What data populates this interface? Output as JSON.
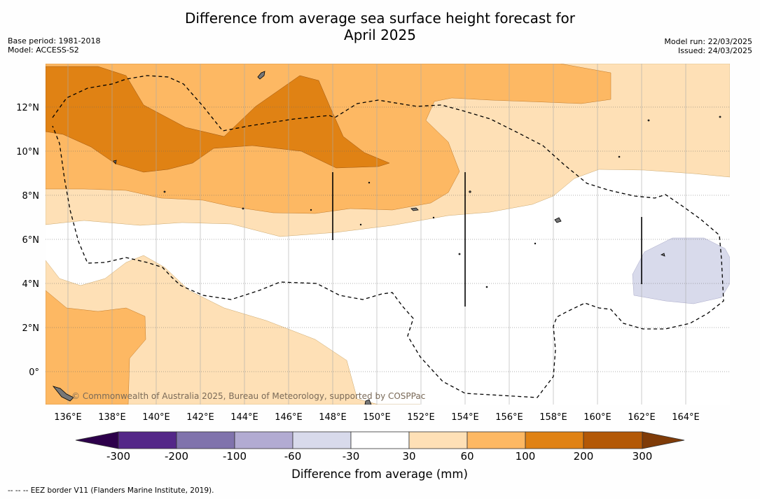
{
  "title_line1": "Difference from average sea surface height forecast for",
  "title_line2": "April 2025",
  "meta_left": {
    "base_period": "Base period: 1981-2018",
    "model": "Model: ACCESS-S2"
  },
  "meta_right": {
    "model_run": "Model run: 22/03/2025",
    "issued": "Issued: 24/03/2025"
  },
  "map": {
    "lon_ticks": [
      "136°E",
      "138°E",
      "140°E",
      "142°E",
      "144°E",
      "146°E",
      "148°E",
      "150°E",
      "152°E",
      "154°E",
      "156°E",
      "158°E",
      "160°E",
      "162°E",
      "164°E"
    ],
    "lat_ticks": [
      "12°N",
      "10°N",
      "8°N",
      "6°N",
      "4°N",
      "2°N",
      "0°"
    ],
    "watermark": "© Commonwealth of Australia 2025, Bureau of Meteorology, supported by COSPPac"
  },
  "colorbar": {
    "title": "Difference from average (mm)",
    "levels": [
      "-300",
      "-200",
      "-100",
      "-60",
      "-30",
      "30",
      "60",
      "100",
      "200",
      "300"
    ],
    "colors": {
      "below": "#2d004b",
      "bins": [
        "#542788",
        "#8073ac",
        "#b2abd2",
        "#d8daeb",
        "#ffffff",
        "#fee0b6",
        "#fdb863",
        "#e08214",
        "#b35806"
      ],
      "above": "#7f3b08"
    }
  },
  "footer": "--  --  -- EEZ border V11 (Flanders Marine Institute, 2019)."
}
